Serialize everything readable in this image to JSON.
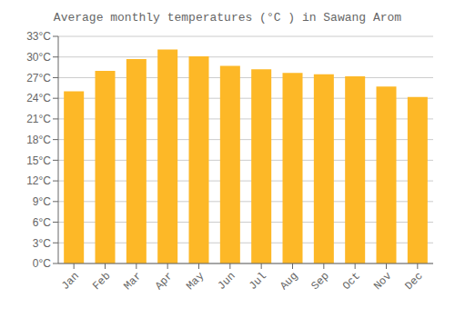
{
  "chart_data": {
    "type": "bar",
    "title": "Average monthly temperatures (°C ) in Sawang Arom",
    "categories": [
      "Jan",
      "Feb",
      "Mar",
      "Apr",
      "May",
      "Jun",
      "Jul",
      "Aug",
      "Sep",
      "Oct",
      "Nov",
      "Dec"
    ],
    "values": [
      25.0,
      28.0,
      29.7,
      31.1,
      30.1,
      28.7,
      28.2,
      27.7,
      27.5,
      27.2,
      25.7,
      24.2
    ],
    "color": "#FDB827",
    "ylim": [
      0,
      33
    ],
    "yticks": [
      {
        "value": 0,
        "label": "0°C"
      },
      {
        "value": 3,
        "label": "3°C"
      },
      {
        "value": 6,
        "label": "6°C"
      },
      {
        "value": 9,
        "label": "9°C"
      },
      {
        "value": 12,
        "label": "12°C"
      },
      {
        "value": 15,
        "label": "15°C"
      },
      {
        "value": 18,
        "label": "18°C"
      },
      {
        "value": 21,
        "label": "21°C"
      },
      {
        "value": 24,
        "label": "24°C"
      },
      {
        "value": 27,
        "label": "27°C"
      },
      {
        "value": 30,
        "label": "30°C"
      },
      {
        "value": 33,
        "label": "33°C"
      }
    ],
    "grid": true
  }
}
